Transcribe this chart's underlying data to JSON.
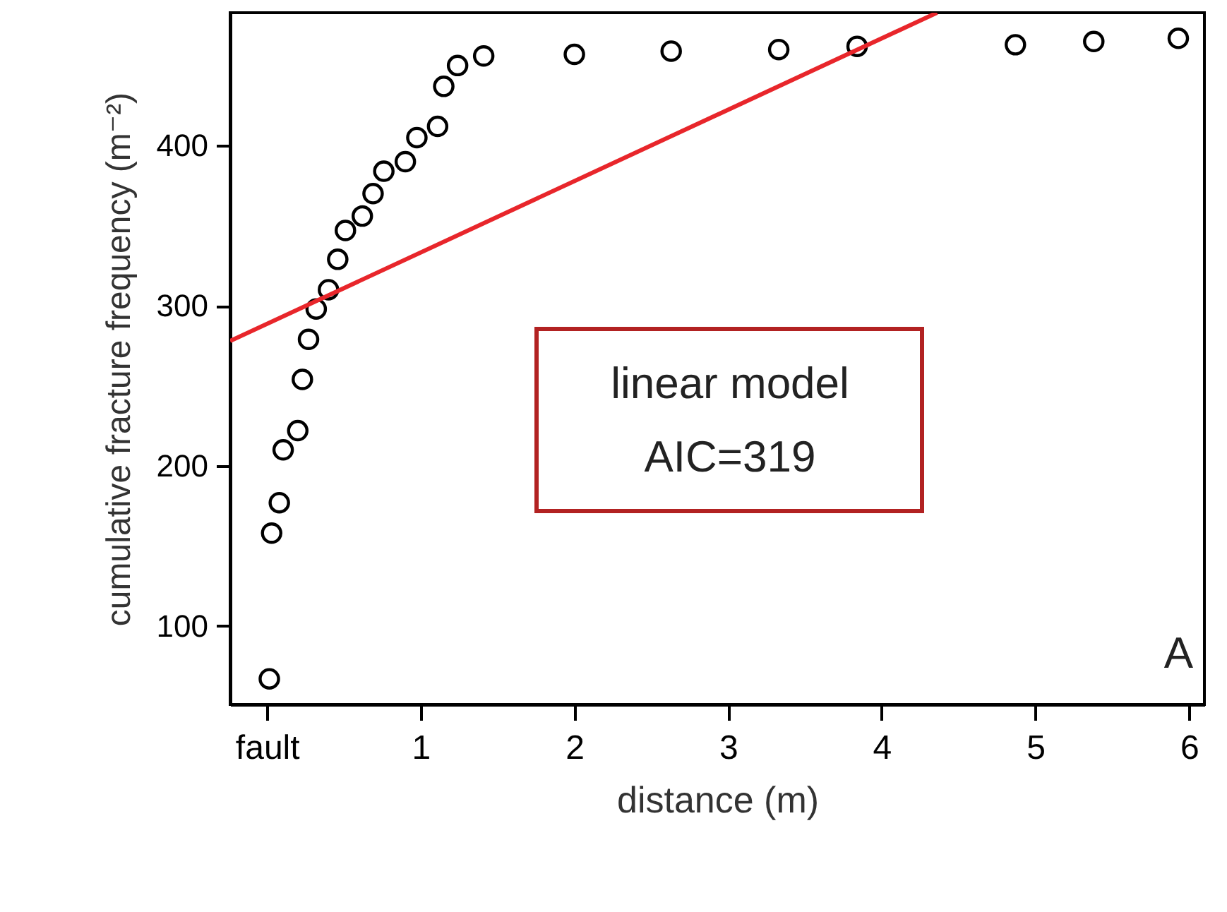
{
  "chart_data": {
    "type": "scatter",
    "xlabel": "distance (m)",
    "ylabel": "cumulative fracture frequency (m⁻²)",
    "annotations": [
      "linear model\nAIC=319",
      "A"
    ],
    "xlim": [
      -0.24,
      6.1
    ],
    "ylim": [
      51,
      483
    ],
    "xticks": [
      {
        "value": 0,
        "label": "fault"
      },
      1,
      2,
      3,
      4,
      5,
      6
    ],
    "yticks": [
      100,
      200,
      300,
      400
    ],
    "grid": false,
    "series": [
      {
        "marker": "circle",
        "color": "#000000",
        "x": [
          0.015,
          0.03,
          0.08,
          0.105,
          0.2,
          0.23,
          0.27,
          0.32,
          0.4,
          0.46,
          0.51,
          0.62,
          0.69,
          0.76,
          0.9,
          0.975,
          1.11,
          1.15,
          1.24,
          1.41,
          2.0,
          2.63,
          3.33,
          3.84,
          4.87,
          5.38,
          5.93
        ],
        "values": [
          67,
          158,
          177,
          210,
          222,
          254,
          279,
          298,
          310,
          329,
          347,
          356,
          370,
          384,
          390,
          405,
          412,
          437,
          450,
          456,
          457,
          459,
          460,
          462,
          463,
          465,
          467
        ]
      },
      {
        "type": "line",
        "color": "#e8262b",
        "x": [
          -0.24,
          4.36
        ],
        "values": [
          278,
          483
        ]
      }
    ]
  }
}
